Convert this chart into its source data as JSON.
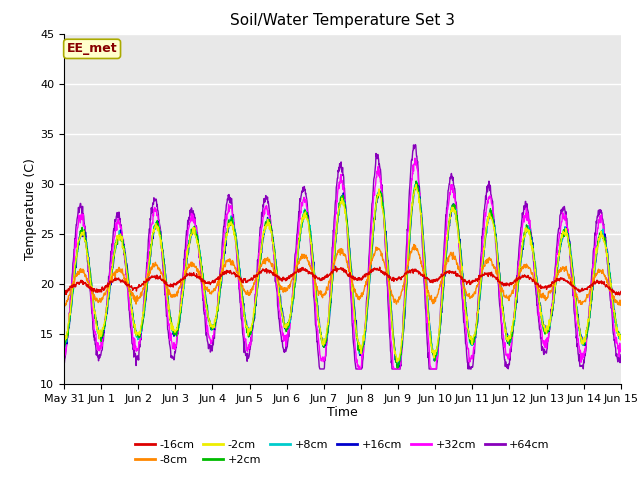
{
  "title": "Soil/Water Temperature Set 3",
  "xlabel": "Time",
  "ylabel": "Temperature (C)",
  "ylim": [
    10,
    45
  ],
  "xlim": [
    0,
    15
  ],
  "background_color": "#ffffff",
  "plot_bg_color": "#e8e8e8",
  "grid_color": "#ffffff",
  "annotation_text": "EE_met",
  "annotation_bg": "#ffffcc",
  "annotation_border": "#aaaa00",
  "annotation_text_color": "#880000",
  "xtick_labels": [
    "May 31",
    "Jun 1",
    "Jun 2",
    "Jun 3",
    "Jun 4",
    "Jun 5",
    "Jun 6",
    "Jun 7",
    "Jun 8",
    "Jun 9",
    "Jun 10",
    "Jun 11",
    "Jun 12",
    "Jun 13",
    "Jun 14",
    "Jun 15"
  ],
  "series_colors": {
    "-16cm": "#dd0000",
    "-8cm": "#ff8800",
    "-2cm": "#eeee00",
    "+2cm": "#00bb00",
    "+8cm": "#00cccc",
    "+16cm": "#0000cc",
    "+32cm": "#ff00ff",
    "+64cm": "#8800bb"
  },
  "yticks": [
    10,
    15,
    20,
    25,
    30,
    35,
    40,
    45
  ]
}
